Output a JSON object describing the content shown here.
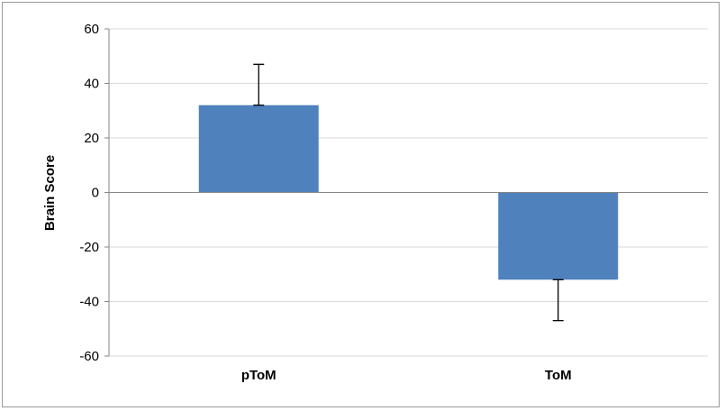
{
  "chart_data": {
    "type": "bar",
    "title": "",
    "xlabel": "",
    "ylabel": "Brain Score",
    "categories": [
      "pToM",
      "ToM"
    ],
    "values": [
      32,
      -32
    ],
    "error_upper": [
      15,
      0
    ],
    "error_lower": [
      0,
      15
    ],
    "ylim": [
      -60,
      60
    ],
    "yticks": [
      60,
      40,
      20,
      0,
      -20,
      -40,
      -60
    ],
    "ytick_labels": [
      "60",
      "40",
      "20",
      "0",
      "-20",
      "-40",
      "-60"
    ],
    "grid": true,
    "legend": "none",
    "colors": {
      "bar": "#4f81bd",
      "grid": "#d9d9d9",
      "axis": "#868686",
      "error_bar": "#000000"
    }
  }
}
